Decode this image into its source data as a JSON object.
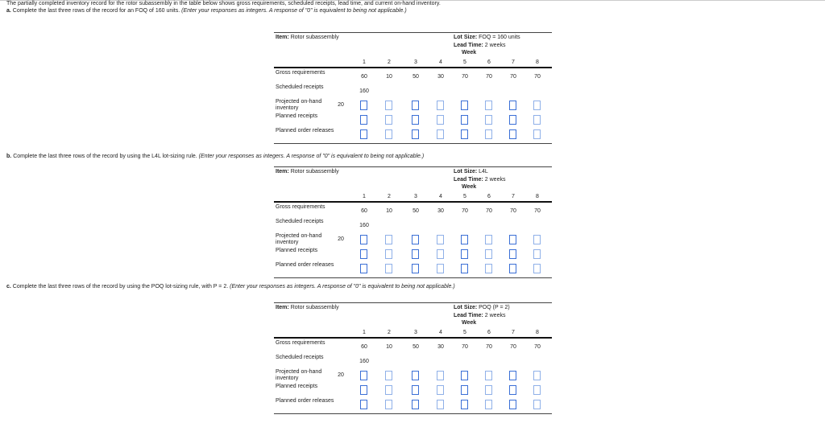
{
  "intro": "The partially completed inventory record for the rotor subassembly in the table below shows gross requirements, scheduled receipts, lead time, and current on-hand inventory.",
  "parts": [
    {
      "letter": "a.",
      "text": "Complete the last three rows of the record for an FOQ of 160 units.",
      "note": "(Enter your responses as integers. A response of \"0\" is equivalent to being not applicable.)",
      "item_label": "Item:",
      "item_value": "Rotor subassembly",
      "lot_label": "Lot Size:",
      "lot_value": "FOQ = 160 units",
      "lead_label": "Lead Time:",
      "lead_value": "2 weeks"
    },
    {
      "letter": "b.",
      "text": "Complete the last three rows of the record by using the L4L lot-sizing rule.",
      "note": "(Enter your responses as integers. A response of \"0\" is equivalent to being not applicable.)",
      "item_label": "Item:",
      "item_value": "Rotor subassembly",
      "lot_label": "Lot Size:",
      "lot_value": "L4L",
      "lead_label": "Lead Time:",
      "lead_value": "2 weeks"
    },
    {
      "letter": "c.",
      "text": "Complete the last three rows of the record by using the POQ lot-sizing rule, with P = 2.",
      "note": "(Enter your responses as integers. A response of \"0\" is equivalent to being not applicable.)",
      "item_label": "Item:",
      "item_value": "Rotor subassembly",
      "lot_label": "Lot Size:",
      "lot_value": "POQ (P = 2)",
      "lead_label": "Lead Time:",
      "lead_value": "2 weeks"
    }
  ],
  "table": {
    "week_label": "Week",
    "weeks": [
      "1",
      "2",
      "3",
      "4",
      "5",
      "6",
      "7",
      "8"
    ],
    "rows": {
      "gross": "Gross requirements",
      "scheduled": "Scheduled receipts",
      "projected": "Projected on-hand inventory",
      "planned_receipts": "Planned receipts",
      "planned_releases": "Planned order releases"
    },
    "gross_requirements": [
      "60",
      "10",
      "50",
      "30",
      "70",
      "70",
      "70",
      "70"
    ],
    "scheduled_receipts": [
      "160",
      "",
      "",
      "",
      "",
      "",
      "",
      ""
    ],
    "initial_on_hand": "20"
  },
  "colors": {
    "input_border": "#3b6fd6"
  }
}
